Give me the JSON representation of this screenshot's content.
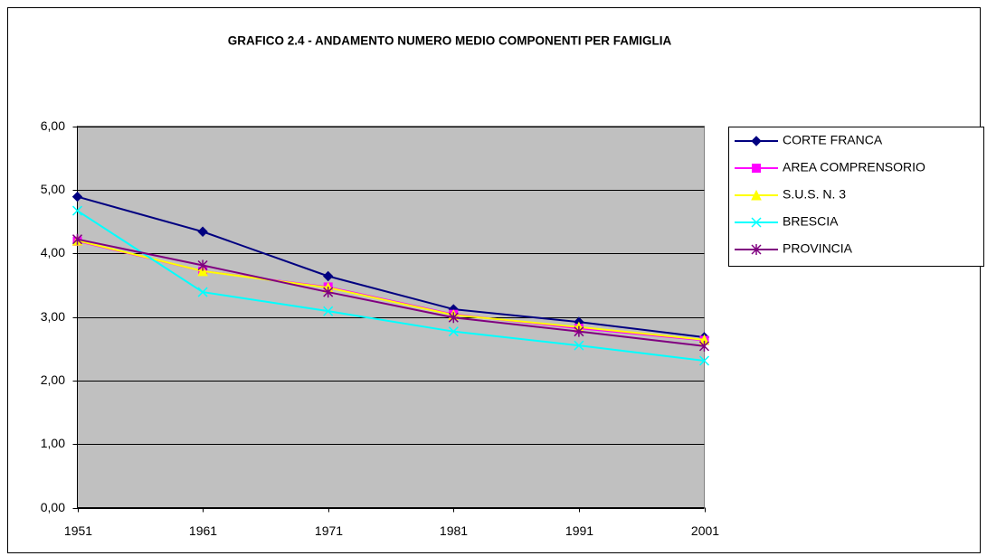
{
  "chart_data": {
    "type": "line",
    "title": "GRAFICO 2.4 - ANDAMENTO NUMERO MEDIO COMPONENTI PER FAMIGLIA",
    "categories": [
      "1951",
      "1961",
      "1971",
      "1981",
      "1991",
      "2001"
    ],
    "series": [
      {
        "name": "CORTE FRANCA",
        "color": "#000080",
        "marker": "diamond",
        "values": [
          4.89,
          4.34,
          3.64,
          3.12,
          2.92,
          2.68
        ]
      },
      {
        "name": "AREA COMPRENSORIO",
        "color": "#ff00ff",
        "marker": "square",
        "values": [
          4.19,
          3.72,
          3.47,
          3.04,
          2.82,
          2.63
        ]
      },
      {
        "name": "S.U.S. N. 3",
        "color": "#ffff00",
        "marker": "triangle",
        "values": [
          4.2,
          3.72,
          3.46,
          3.03,
          2.84,
          2.64
        ]
      },
      {
        "name": "BRESCIA",
        "color": "#00ffff",
        "marker": "x",
        "values": [
          4.67,
          3.39,
          3.09,
          2.77,
          2.55,
          2.31
        ]
      },
      {
        "name": "PROVINCIA",
        "color": "#800080",
        "marker": "star",
        "values": [
          4.22,
          3.81,
          3.39,
          2.99,
          2.77,
          2.54
        ]
      }
    ],
    "ylim": [
      0,
      6
    ],
    "yticks": [
      {
        "value": 0,
        "label": "0,00"
      },
      {
        "value": 1,
        "label": "1,00"
      },
      {
        "value": 2,
        "label": "2,00"
      },
      {
        "value": 3,
        "label": "3,00"
      },
      {
        "value": 4,
        "label": "4,00"
      },
      {
        "value": 5,
        "label": "5,00"
      },
      {
        "value": 6,
        "label": "6,00"
      }
    ],
    "grid": true,
    "legend": "right"
  }
}
